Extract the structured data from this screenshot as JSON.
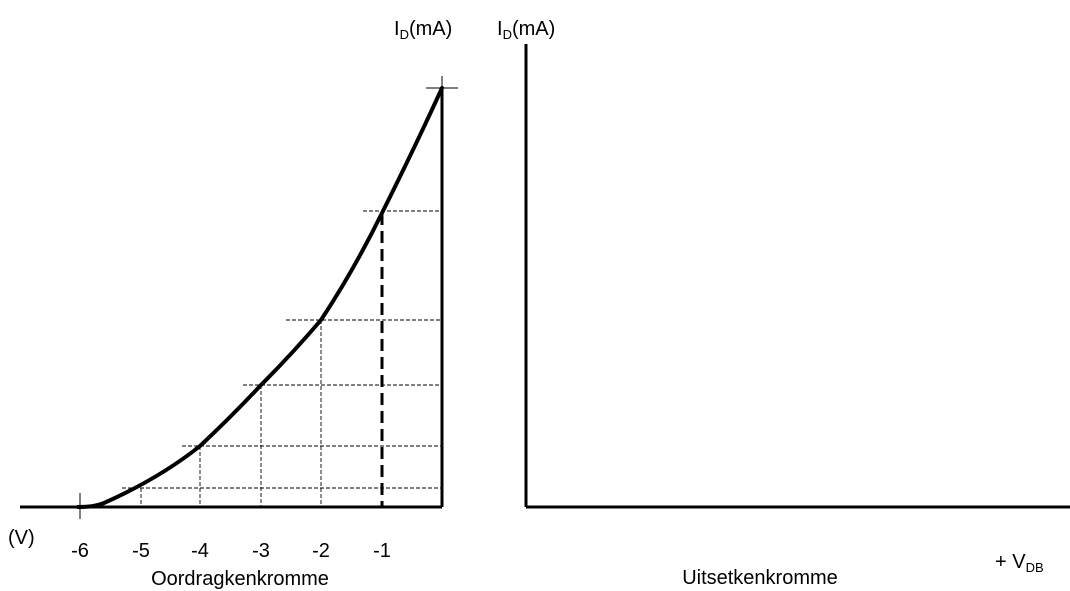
{
  "left_chart": {
    "y_axis_label_main": "I",
    "y_axis_label_sub": "D",
    "y_axis_label_unit": "(mA)",
    "x_axis_unit": "(V)",
    "caption": "Oordragkenkromme",
    "ticks": [
      "-6",
      "-5",
      "-4",
      "-3",
      "-2",
      "-1"
    ]
  },
  "right_chart": {
    "y_axis_label_main": "I",
    "y_axis_label_sub": "D",
    "y_axis_label_unit": "(mA)",
    "x_axis_label_prefix": "+ V",
    "x_axis_label_sub": "DB",
    "caption": "Uitsetkenkromme"
  },
  "chart_data": {
    "type": "line",
    "x": [
      -6,
      -5,
      -4,
      -3,
      -2,
      -1,
      0
    ],
    "xlim": [
      -6,
      0
    ],
    "curve": "square-law transfer curve rising from -6 V to maximum at 0 V",
    "guides_at": [
      -5,
      -4,
      -3,
      -2,
      -1
    ],
    "emphasized_guide": -1
  }
}
